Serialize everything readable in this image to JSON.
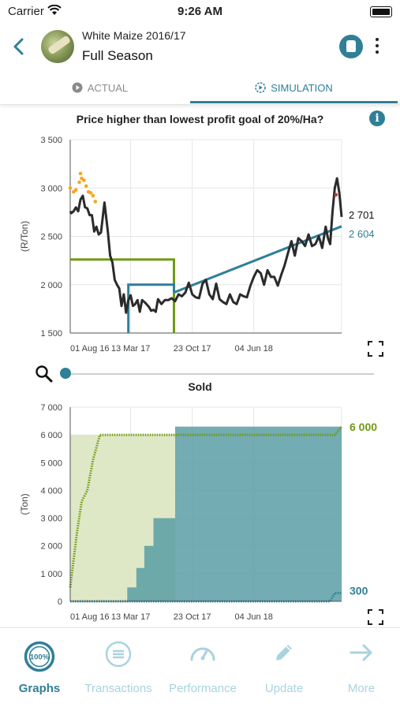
{
  "status_bar": {
    "carrier": "Carrier",
    "time": "9:26 AM"
  },
  "header": {
    "subtitle": "White Maize 2016/17",
    "title": "Full Season"
  },
  "tabs": [
    {
      "label": "ACTUAL",
      "active": false
    },
    {
      "label": "SIMULATION",
      "active": true
    }
  ],
  "colors": {
    "accent": "#2f7f97",
    "green": "#6f9a12",
    "price_line": "#2b2b2b",
    "dots": "#f5a623",
    "area_green": "#dbe6c0",
    "area_teal": "#5a9ea4"
  },
  "chart_data": [
    {
      "type": "line",
      "title": "Price higher than lowest profit goal of 20%/Ha?",
      "ylabel": "(R/Ton)",
      "ylim": [
        1500,
        3500
      ],
      "yticks": [
        "1 500",
        "2 000",
        "2 500",
        "3 000",
        "3 500"
      ],
      "xticks": [
        "01 Aug 16",
        "13 Mar 17",
        "23 Oct 17",
        "04 Jun 18"
      ],
      "end_labels": [
        "2 701",
        "2 604"
      ],
      "series": [
        {
          "name": "",
          "values": [
            [
              0,
              2760
            ],
            [
              0.1,
              2740
            ],
            [
              0.3,
              2760
            ],
            [
              0.5,
              2800
            ],
            [
              0.7,
              2760
            ],
            [
              0.9,
              2880
            ],
            [
              1.1,
              2920
            ],
            [
              1.3,
              2800
            ],
            [
              1.5,
              2790
            ],
            [
              1.7,
              2720
            ],
            [
              1.9,
              2720
            ],
            [
              2.1,
              2550
            ],
            [
              2.3,
              2600
            ],
            [
              2.5,
              2520
            ],
            [
              2.7,
              2540
            ],
            [
              3.0,
              2850
            ],
            [
              3.3,
              2550
            ],
            [
              3.5,
              2300
            ],
            [
              3.7,
              2230
            ],
            [
              3.9,
              2050
            ],
            [
              4.1,
              2000
            ],
            [
              4.3,
              1960
            ],
            [
              4.5,
              1780
            ],
            [
              4.7,
              1900
            ],
            [
              4.9,
              1710
            ],
            [
              5.1,
              1840
            ],
            [
              5.3,
              1890
            ],
            [
              5.5,
              1780
            ],
            [
              5.7,
              1800
            ],
            [
              5.9,
              1840
            ],
            [
              6.1,
              1720
            ],
            [
              6.3,
              1840
            ],
            [
              6.6,
              1810
            ],
            [
              6.9,
              1770
            ],
            [
              7.1,
              1730
            ],
            [
              7.3,
              1740
            ],
            [
              7.5,
              1720
            ],
            [
              7.7,
              1850
            ],
            [
              8.0,
              1800
            ],
            [
              8.3,
              1840
            ],
            [
              8.6,
              1840
            ],
            [
              8.9,
              1860
            ],
            [
              9.2,
              1830
            ],
            [
              9.5,
              1900
            ],
            [
              9.8,
              1880
            ],
            [
              10.1,
              1920
            ],
            [
              10.4,
              2020
            ],
            [
              10.7,
              1900
            ],
            [
              11.0,
              1870
            ],
            [
              11.3,
              1860
            ],
            [
              11.6,
              2010
            ],
            [
              11.9,
              2050
            ],
            [
              12.2,
              1900
            ],
            [
              12.5,
              1850
            ],
            [
              12.8,
              2010
            ],
            [
              13.1,
              1850
            ],
            [
              13.4,
              1820
            ],
            [
              13.7,
              1800
            ],
            [
              14.0,
              1900
            ],
            [
              14.3,
              1820
            ],
            [
              14.6,
              1800
            ],
            [
              14.9,
              1900
            ],
            [
              15.2,
              1880
            ],
            [
              15.5,
              1870
            ],
            [
              15.8,
              1990
            ],
            [
              16.1,
              2080
            ],
            [
              16.4,
              2150
            ],
            [
              16.7,
              2120
            ],
            [
              17.0,
              2000
            ],
            [
              17.3,
              2150
            ],
            [
              17.6,
              2080
            ],
            [
              17.9,
              2080
            ],
            [
              18.2,
              1990
            ],
            [
              18.5,
              2100
            ],
            [
              18.8,
              2200
            ],
            [
              19.1,
              2330
            ],
            [
              19.4,
              2450
            ],
            [
              19.7,
              2300
            ],
            [
              20.0,
              2480
            ],
            [
              20.3,
              2450
            ],
            [
              20.6,
              2400
            ],
            [
              20.9,
              2520
            ],
            [
              21.2,
              2400
            ],
            [
              21.5,
              2420
            ],
            [
              21.8,
              2500
            ],
            [
              22.1,
              2380
            ],
            [
              22.4,
              2600
            ],
            [
              22.6,
              2480
            ],
            [
              22.8,
              2420
            ],
            [
              23.0,
              2750
            ],
            [
              23.2,
              3000
            ],
            [
              23.4,
              3100
            ],
            [
              23.6,
              2950
            ],
            [
              23.8,
              2701
            ]
          ]
        },
        {
          "name": "",
          "values": [
            [
              9.1,
              1920
            ],
            [
              23.8,
              2604
            ]
          ]
        },
        {
          "name": "",
          "values": [
            [
              0,
              2260
            ],
            [
              9.1,
              2260
            ],
            [
              9.1,
              1500
            ]
          ]
        },
        {
          "name": "",
          "values": [
            [
              5.1,
              1500
            ],
            [
              5.1,
              2000
            ],
            [
              9.1,
              2000
            ],
            [
              9.1,
              1920
            ]
          ]
        },
        {
          "name": "",
          "values": [
            [
              0,
              3000
            ],
            [
              0.3,
              2960
            ],
            [
              0.5,
              2980
            ],
            [
              0.8,
              3060
            ],
            [
              0.9,
              3150
            ],
            [
              1.0,
              3100
            ],
            [
              1.2,
              3080
            ],
            [
              1.4,
              3020
            ],
            [
              1.6,
              2960
            ],
            [
              1.8,
              2950
            ],
            [
              2.0,
              2920
            ],
            [
              2.2,
              2860
            ],
            [
              23.3,
              2930
            ]
          ]
        }
      ]
    },
    {
      "type": "area",
      "title": "Sold",
      "ylabel": "(Ton)",
      "ylim": [
        0,
        7000
      ],
      "yticks": [
        "0",
        "1 000",
        "2 000",
        "3 000",
        "4 000",
        "5 000",
        "6 000",
        "7 000"
      ],
      "xticks": [
        "01 Aug 16",
        "13 Mar 17",
        "23 Oct 17",
        "04 Jun 18"
      ],
      "end_labels": [
        "6 000",
        "300"
      ],
      "series": [
        {
          "name": "",
          "values": [
            [
              0,
              6000
            ],
            [
              9.2,
              6000
            ]
          ]
        },
        {
          "name": "",
          "values": [
            [
              0,
              0
            ],
            [
              5.0,
              0
            ],
            [
              5.0,
              500
            ],
            [
              5.8,
              500
            ],
            [
              5.8,
              1200
            ],
            [
              6.5,
              1200
            ],
            [
              6.5,
              2000
            ],
            [
              7.3,
              2000
            ],
            [
              7.3,
              3000
            ],
            [
              9.2,
              3000
            ],
            [
              9.2,
              6300
            ],
            [
              23.8,
              6300
            ]
          ]
        },
        {
          "name": "",
          "values": [
            [
              0,
              500
            ],
            [
              0.3,
              1500
            ],
            [
              0.6,
              2500
            ],
            [
              1.0,
              3600
            ],
            [
              1.5,
              4000
            ],
            [
              2.0,
              5100
            ],
            [
              2.4,
              5700
            ],
            [
              2.6,
              6000
            ],
            [
              23.2,
              6000
            ],
            [
              23.8,
              6300
            ]
          ]
        },
        {
          "name": "",
          "values": [
            [
              0,
              0
            ],
            [
              22.8,
              0
            ],
            [
              23.2,
              300
            ],
            [
              23.8,
              300
            ]
          ]
        }
      ]
    }
  ],
  "zoom": {
    "level": 0
  },
  "nav": [
    {
      "label": "Graphs",
      "icon": "percent-gauge-icon",
      "active": true
    },
    {
      "label": "Transactions",
      "icon": "list-icon",
      "active": false
    },
    {
      "label": "Performance",
      "icon": "speedometer-icon",
      "active": false
    },
    {
      "label": "Update",
      "icon": "pencil-icon",
      "active": false
    },
    {
      "label": "More",
      "icon": "arrow-right-icon",
      "active": false
    }
  ],
  "nav_badge": "100%"
}
